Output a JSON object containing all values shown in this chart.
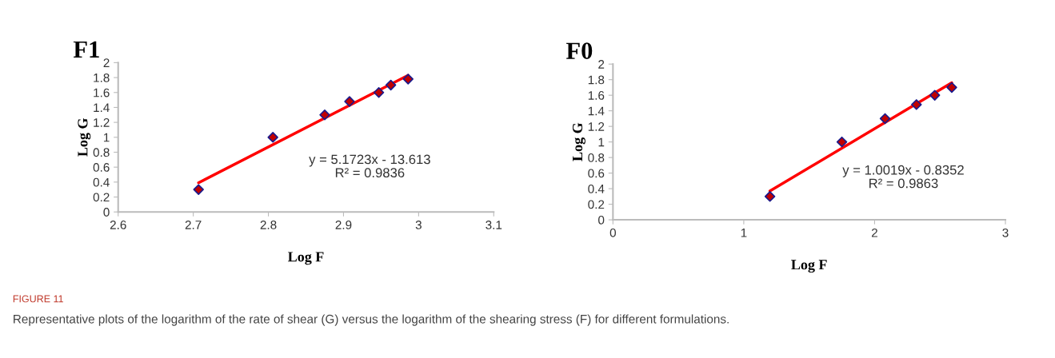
{
  "chart_data": [
    {
      "type": "scatter",
      "title": "F1",
      "xlabel": "Log F",
      "ylabel": "Log G",
      "xlim": [
        2.6,
        3.1
      ],
      "xticks": [
        2.6,
        2.7,
        2.8,
        2.9,
        3,
        3.1
      ],
      "ylim": [
        0,
        2
      ],
      "yticks": [
        0,
        0.2,
        0.4,
        0.6,
        0.8,
        1,
        1.2,
        1.4,
        1.6,
        1.8,
        2
      ],
      "grid": false,
      "legend": false,
      "series": [
        {
          "marker": "diamond",
          "color": "#c00000",
          "x": [
            2.707,
            2.806,
            2.875,
            2.908,
            2.947,
            2.963,
            2.986
          ],
          "values": [
            0.3,
            1.0,
            1.3,
            1.48,
            1.6,
            1.7,
            1.78
          ]
        },
        {
          "type": "line",
          "marker": "none",
          "color": "#ff0000",
          "x": [
            2.707,
            2.986
          ],
          "values": [
            0.39,
            1.83
          ]
        }
      ],
      "annotations": [
        "y = 5.1723x - 13.613\nR² = 0.9836",
        "FIGURE 11",
        "Representative plots of the logarithm of the rate of shear (G) versus the logarithm of the shearing stress (F) for different formulations."
      ]
    },
    {
      "type": "scatter",
      "title": "F0",
      "xlabel": "Log F",
      "ylabel": "Log G",
      "xlim": [
        0,
        3
      ],
      "xticks": [
        0,
        1,
        2,
        3
      ],
      "ylim": [
        0,
        2
      ],
      "yticks": [
        0,
        0.2,
        0.4,
        0.6,
        0.8,
        1,
        1.2,
        1.4,
        1.6,
        1.8,
        2
      ],
      "grid": false,
      "legend": false,
      "series": [
        {
          "marker": "diamond",
          "color": "#c00000",
          "x": [
            1.2,
            1.75,
            2.08,
            2.32,
            2.46,
            2.59
          ],
          "values": [
            0.3,
            1.0,
            1.3,
            1.48,
            1.6,
            1.7
          ]
        },
        {
          "type": "line",
          "marker": "none",
          "color": "#ff0000",
          "x": [
            1.2,
            2.59
          ],
          "values": [
            0.37,
            1.76
          ]
        }
      ],
      "annotations": [
        "y = 1.0019x - 0.8352\nR² = 0.9863"
      ]
    }
  ]
}
